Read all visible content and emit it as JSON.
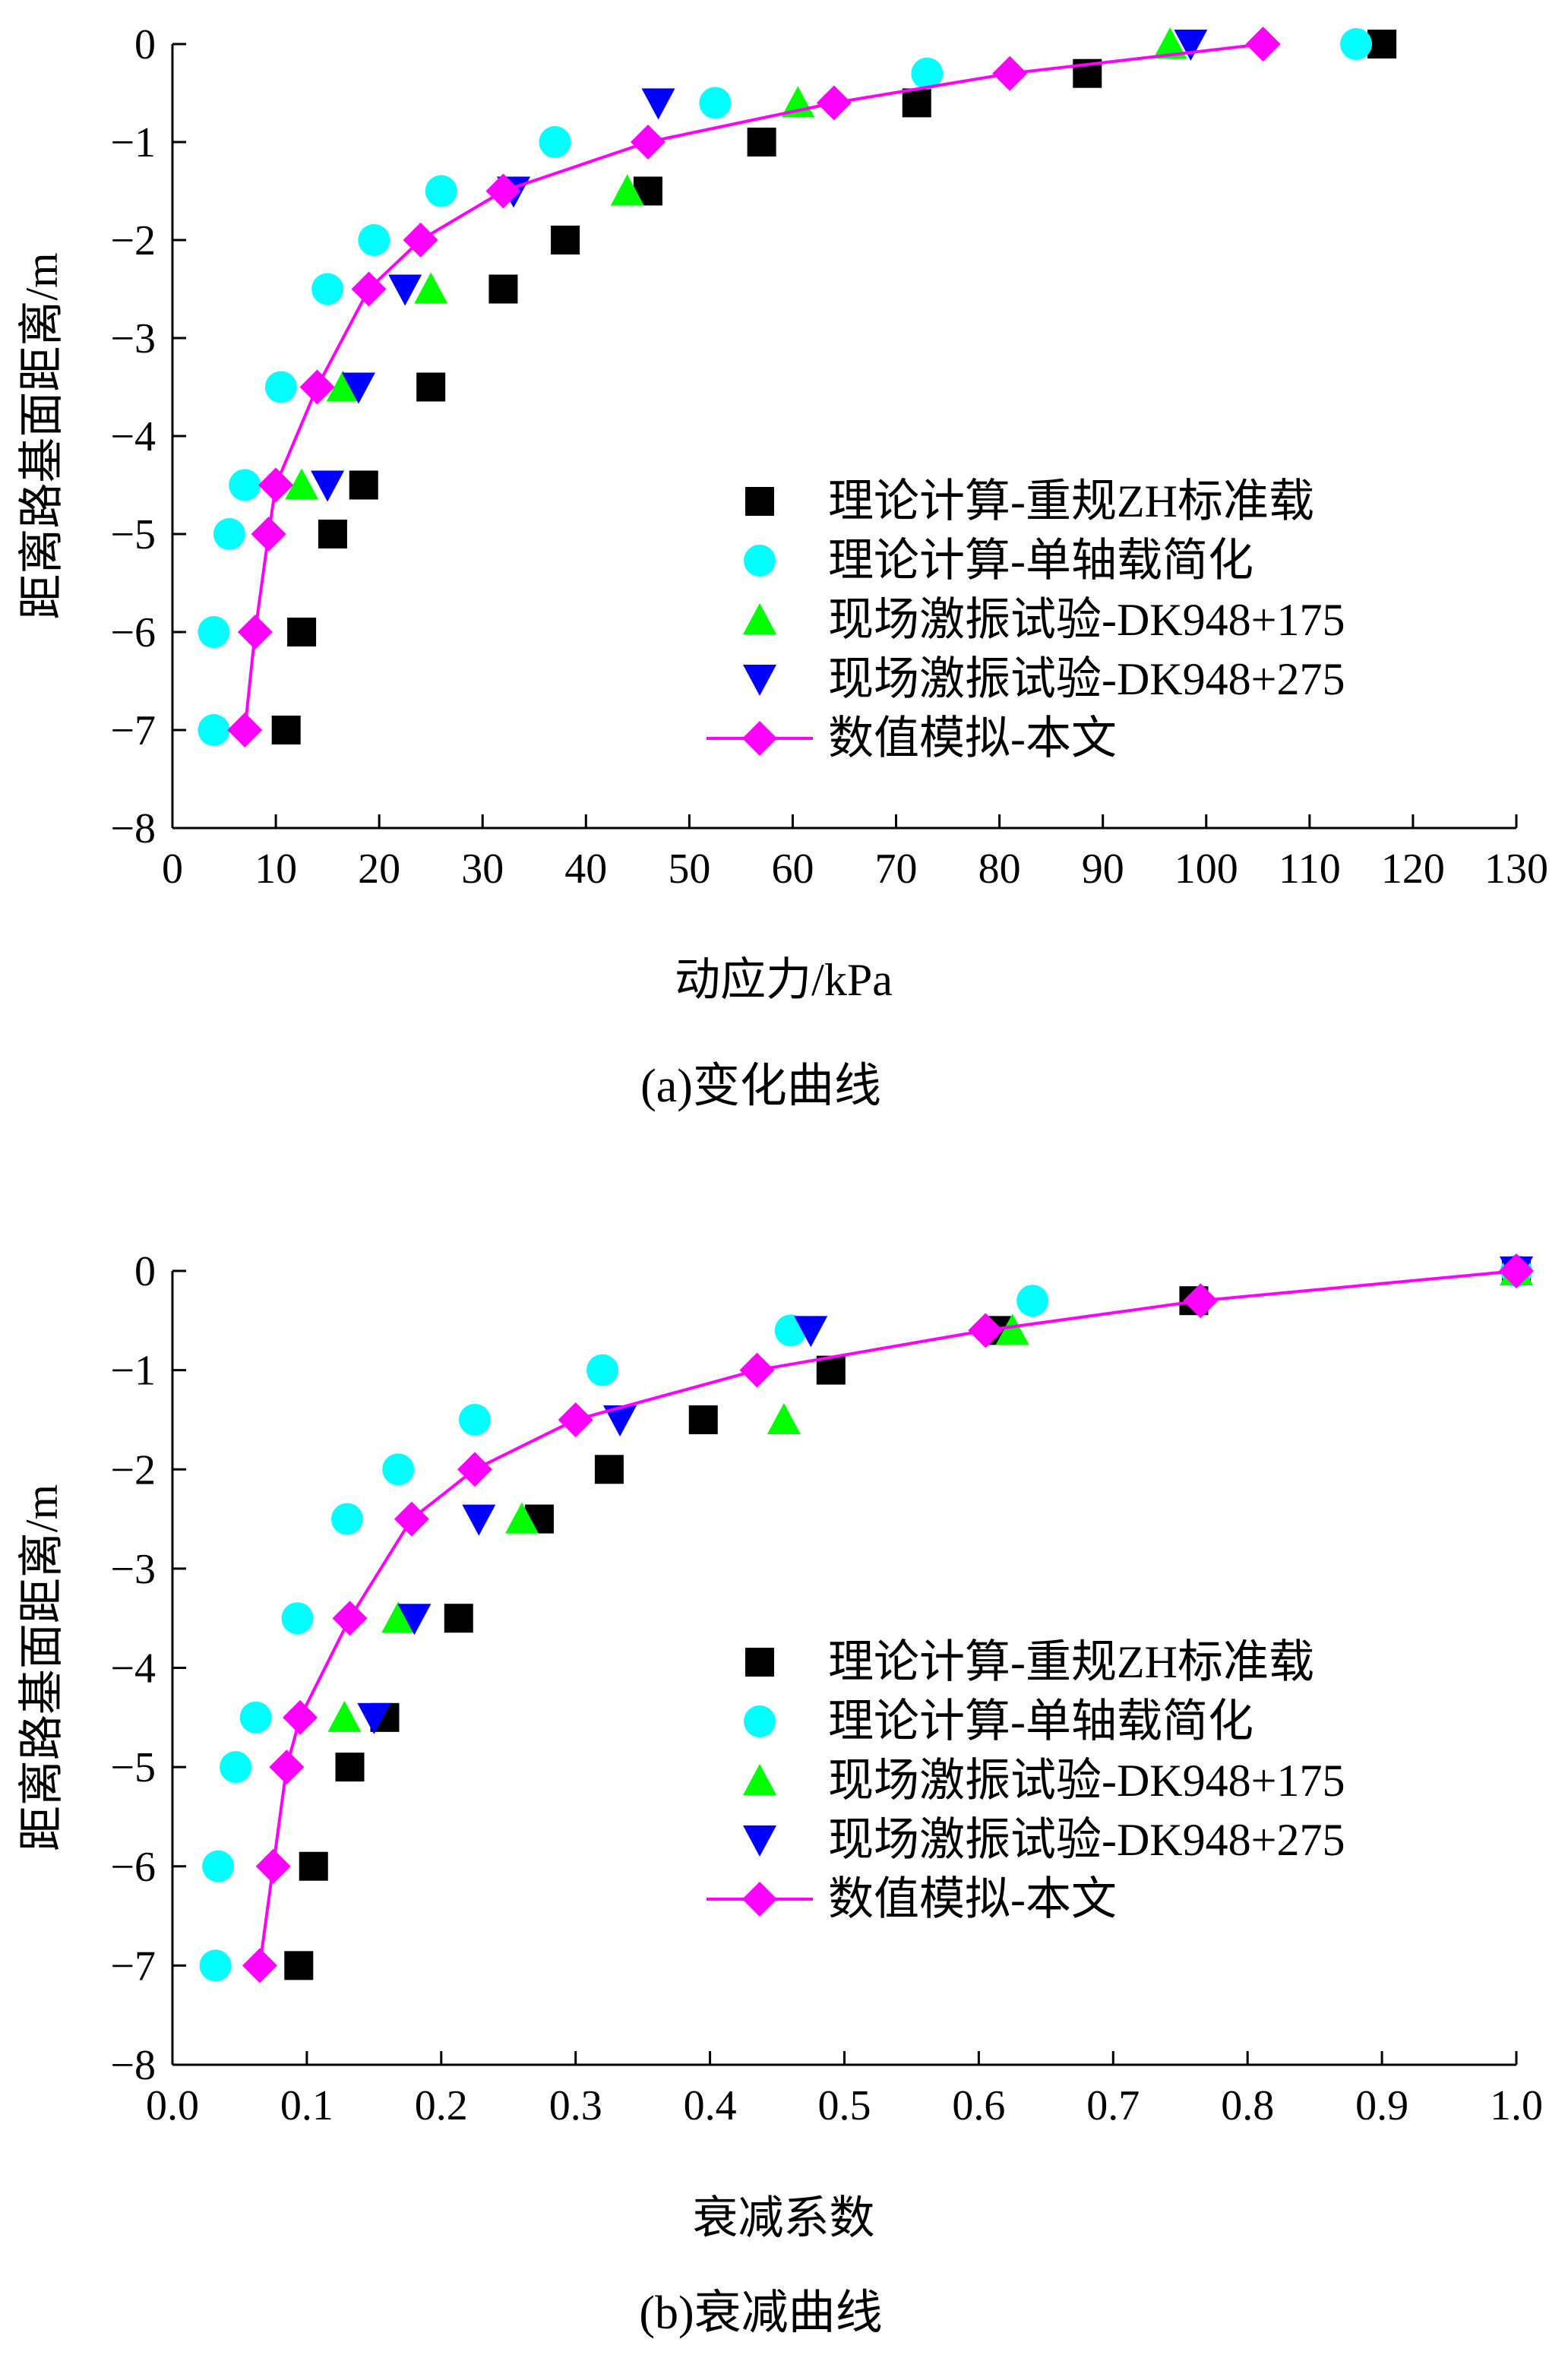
{
  "chart_data": [
    {
      "type": "scatter",
      "caption": "(a)变化曲线",
      "xlabel": "动应力/kPa",
      "ylabel": "距离路基面距离/m",
      "xlim": [
        0,
        130
      ],
      "ylim": [
        -8,
        0
      ],
      "xticks": [
        "0",
        "10",
        "20",
        "30",
        "40",
        "50",
        "60",
        "70",
        "80",
        "90",
        "100",
        "110",
        "120",
        "130"
      ],
      "yticks": [
        "0",
        "−1",
        "−2",
        "−3",
        "−4",
        "−5",
        "−6",
        "−7",
        "−8"
      ],
      "legend_position": "lower-right",
      "series": [
        {
          "name": "理论计算-重规ZH标准载",
          "marker": "square",
          "color": "#000000",
          "x": [
            117,
            88.5,
            72,
            57,
            46,
            38,
            32,
            25,
            18.5,
            15.5,
            12.5,
            11
          ],
          "y": [
            0,
            -0.3,
            -0.6,
            -1,
            -1.5,
            -2,
            -2.5,
            -3.5,
            -4.5,
            -5,
            -6,
            -7
          ]
        },
        {
          "name": "理论计算-单轴载简化",
          "marker": "circle",
          "color": "#00FFFF",
          "x": [
            114.5,
            73,
            52.5,
            37,
            26,
            19.5,
            15,
            10.5,
            7,
            5.5,
            4,
            4
          ],
          "y": [
            0,
            -0.3,
            -0.6,
            -1,
            -1.5,
            -2,
            -2.5,
            -3.5,
            -4.5,
            -5,
            -6,
            -7
          ]
        },
        {
          "name": "现场激振试验-DK948+175",
          "marker": "triangle-up",
          "color": "#00FF00",
          "x": [
            96.5,
            60.5,
            44,
            25,
            16.5,
            12.5
          ],
          "y": [
            0,
            -0.6,
            -1.5,
            -2.5,
            -3.5,
            -4.5
          ]
        },
        {
          "name": "现场激振试验-DK948+275",
          "marker": "triangle-down",
          "color": "#0000FF",
          "x": [
            98.5,
            47,
            33,
            22.5,
            18,
            15
          ],
          "y": [
            0,
            -0.6,
            -1.5,
            -2.5,
            -3.5,
            -4.5
          ]
        },
        {
          "name": "数值模拟-本文",
          "marker": "diamond",
          "line": true,
          "color": "#FF00FF",
          "x": [
            105.5,
            81,
            64,
            46,
            32,
            24,
            19,
            14,
            10,
            9.3,
            8,
            7
          ],
          "y": [
            0,
            -0.3,
            -0.6,
            -1,
            -1.5,
            -2,
            -2.5,
            -3.5,
            -4.5,
            -5,
            -6,
            -7
          ]
        }
      ]
    },
    {
      "type": "scatter",
      "caption": "(b)衰减曲线",
      "xlabel": "衰减系数",
      "ylabel": "距离路基面距离/m",
      "xlim": [
        0,
        1
      ],
      "ylim": [
        -8,
        0
      ],
      "xticks": [
        "0.0",
        "0.1",
        "0.2",
        "0.3",
        "0.4",
        "0.5",
        "0.6",
        "0.7",
        "0.8",
        "0.9",
        "1.0"
      ],
      "yticks": [
        "0",
        "−1",
        "−2",
        "−3",
        "−4",
        "−5",
        "−6",
        "−7",
        "−8"
      ],
      "legend_position": "lower-right",
      "series": [
        {
          "name": "理论计算-重规ZH标准载",
          "marker": "square",
          "color": "#000000",
          "x": [
            1.0,
            0.76,
            0.615,
            0.49,
            0.395,
            0.325,
            0.273,
            0.213,
            0.158,
            0.132,
            0.105,
            0.094
          ],
          "y": [
            0,
            -0.3,
            -0.6,
            -1,
            -1.5,
            -2,
            -2.5,
            -3.5,
            -4.5,
            -5,
            -6,
            -7
          ]
        },
        {
          "name": "理论计算-单轴载简化",
          "marker": "circle",
          "color": "#00FFFF",
          "x": [
            1.0,
            0.64,
            0.46,
            0.32,
            0.225,
            0.168,
            0.13,
            0.093,
            0.062,
            0.047,
            0.034,
            0.032
          ],
          "y": [
            0,
            -0.3,
            -0.6,
            -1,
            -1.5,
            -2,
            -2.5,
            -3.5,
            -4.5,
            -5,
            -6,
            -7
          ]
        },
        {
          "name": "现场激振试验-DK948+175",
          "marker": "triangle-up",
          "color": "#00FF00",
          "x": [
            1.0,
            0.625,
            0.455,
            0.26,
            0.168,
            0.128
          ],
          "y": [
            0,
            -0.6,
            -1.5,
            -2.5,
            -3.5,
            -4.5
          ]
        },
        {
          "name": "现场激振试验-DK948+275",
          "marker": "triangle-down",
          "color": "#0000FF",
          "x": [
            1.0,
            0.475,
            0.333,
            0.228,
            0.18,
            0.15
          ],
          "y": [
            0,
            -0.6,
            -1.5,
            -2.5,
            -3.5,
            -4.5
          ]
        },
        {
          "name": "数值模拟-本文",
          "marker": "diamond",
          "line": true,
          "color": "#FF00FF",
          "x": [
            1.0,
            0.765,
            0.605,
            0.435,
            0.3,
            0.225,
            0.178,
            0.132,
            0.095,
            0.085,
            0.075,
            0.065
          ],
          "y": [
            0,
            -0.3,
            -0.6,
            -1,
            -1.5,
            -2,
            -2.5,
            -3.5,
            -4.5,
            -5,
            -6,
            -7
          ]
        }
      ]
    }
  ]
}
